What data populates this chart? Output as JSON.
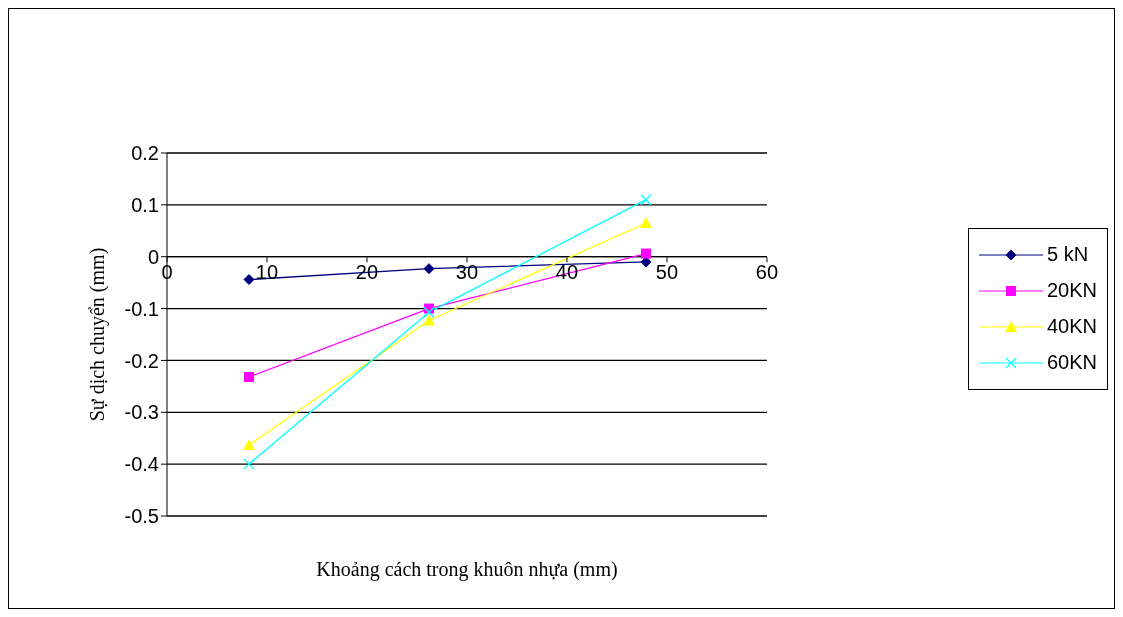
{
  "chart_data": {
    "type": "line",
    "xlabel": "Khoảng cách trong khuôn nhựa (mm)",
    "ylabel": "Sự dịch chuyển (mm)",
    "x": [
      8.2,
      26.2,
      47.9
    ],
    "series": [
      {
        "name": "5 kN",
        "color": "#000080",
        "marker": "diamond",
        "values": [
          -0.044,
          -0.023,
          -0.01
        ]
      },
      {
        "name": "20KN",
        "color": "#ff00ff",
        "marker": "square",
        "values": [
          -0.232,
          -0.1,
          0.006
        ]
      },
      {
        "name": "40KN",
        "color": "#ffff00",
        "marker": "triangle",
        "values": [
          -0.363,
          -0.123,
          0.065
        ]
      },
      {
        "name": "60KN",
        "color": "#00ffff",
        "marker": "cross",
        "values": [
          -0.4,
          -0.107,
          0.11
        ]
      }
    ],
    "xlim": [
      0,
      60
    ],
    "xticks": [
      0,
      10,
      20,
      30,
      40,
      50,
      60
    ],
    "ylim": [
      -0.5,
      0.2
    ],
    "yticks": [
      -0.5,
      -0.4,
      -0.3,
      -0.2,
      -0.1,
      0,
      0.1,
      0.2
    ],
    "grid": "y",
    "legend": "right",
    "line_style": "solid"
  }
}
